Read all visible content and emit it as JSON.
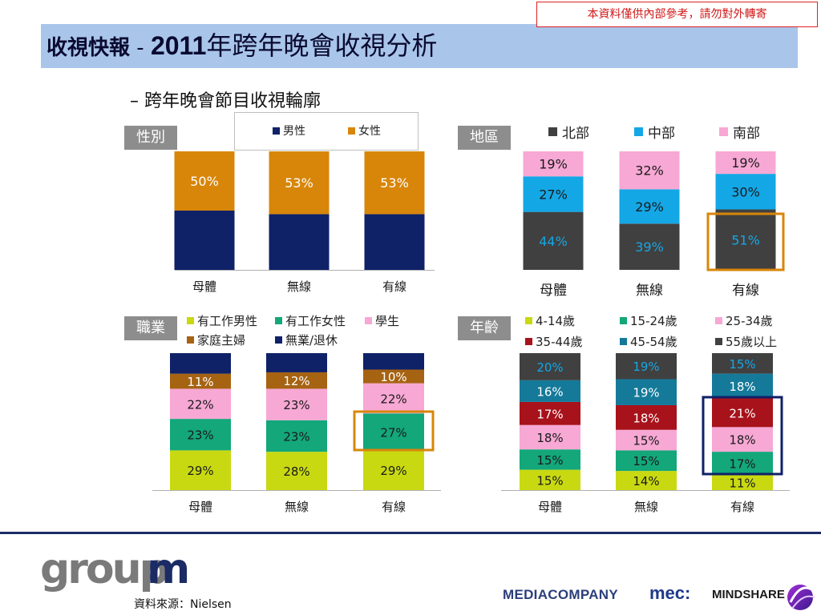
{
  "notice": "本資料僅供內部參考，請勿對外轉寄",
  "title": {
    "part1": "收視快報",
    "dash": " - ",
    "year": "2011",
    "part2": "年跨年晚會收視分析"
  },
  "subtitle": "– 跨年晚會節目收視輪廓",
  "tags": {
    "gender": "性別",
    "region": "地區",
    "occupation": "職業",
    "age": "年齡"
  },
  "source": "資料來源：Nielsen",
  "logos": {
    "groupm": "groupm",
    "mediacompany": "MEDIACOMPANY",
    "mec": "mec:",
    "mindshare": "MINDSHARE"
  },
  "chart_data": [
    {
      "id": "gender",
      "type": "bar",
      "stacked": true,
      "categories": [
        "母體",
        "無線",
        "有線"
      ],
      "series": [
        {
          "name": "男性",
          "color": "#0f2167",
          "values": [
            50,
            47,
            47
          ]
        },
        {
          "name": "女性",
          "color": "#d8860a",
          "values": [
            50,
            53,
            53
          ]
        }
      ],
      "labels": [
        [
          null,
          null,
          null
        ],
        [
          "50%",
          "53%",
          "53%"
        ]
      ]
    },
    {
      "id": "region",
      "type": "bar",
      "stacked": true,
      "categories": [
        "母體",
        "無線",
        "有線"
      ],
      "series": [
        {
          "name": "北部",
          "color": "#404040",
          "values": [
            44,
            39,
            51
          ]
        },
        {
          "name": "中部",
          "color": "#14a7e6",
          "values": [
            27,
            29,
            30
          ]
        },
        {
          "name": "南部",
          "color": "#f7a8d4",
          "values": [
            19,
            32,
            19
          ]
        }
      ],
      "labels": [
        [
          "44%",
          "39%",
          "51%"
        ],
        [
          "27%",
          "29%",
          "30%"
        ],
        [
          "19%",
          "32%",
          "19%"
        ]
      ],
      "highlight": "有線"
    },
    {
      "id": "occupation",
      "type": "bar",
      "stacked": true,
      "categories": [
        "母體",
        "無線",
        "有線"
      ],
      "series": [
        {
          "name": "有工作男性",
          "color": "#c8d912",
          "values": [
            29,
            28,
            29
          ]
        },
        {
          "name": "有工作女性",
          "color": "#13a77a",
          "values": [
            23,
            23,
            27
          ]
        },
        {
          "name": "學生",
          "color": "#f7a8d4",
          "values": [
            22,
            23,
            22
          ]
        },
        {
          "name": "家庭主婦",
          "color": "#a66312",
          "values": [
            11,
            12,
            10
          ]
        },
        {
          "name": "無業/退休",
          "color": "#0f2167",
          "values": [
            15,
            14,
            12
          ]
        }
      ],
      "labels": [
        [
          "29%",
          "28%",
          "29%"
        ],
        [
          "23%",
          "23%",
          "27%"
        ],
        [
          "22%",
          "23%",
          "22%"
        ],
        [
          "11%",
          "12%",
          "10%"
        ],
        [
          null,
          null,
          null
        ]
      ],
      "highlight": "有線"
    },
    {
      "id": "age",
      "type": "bar",
      "stacked": true,
      "categories": [
        "母體",
        "無線",
        "有線"
      ],
      "series": [
        {
          "name": "4-14歲",
          "color": "#c8d912",
          "values": [
            15,
            14,
            11
          ]
        },
        {
          "name": "15-24歲",
          "color": "#13a77a",
          "values": [
            15,
            15,
            17
          ]
        },
        {
          "name": "25-34歲",
          "color": "#f7a8d4",
          "values": [
            18,
            15,
            18
          ]
        },
        {
          "name": "35-44歲",
          "color": "#a8121b",
          "values": [
            17,
            18,
            21
          ]
        },
        {
          "name": "45-54歲",
          "color": "#157a9a",
          "values": [
            16,
            19,
            18
          ]
        },
        {
          "name": "55歲以上",
          "color": "#404040",
          "values": [
            20,
            19,
            15
          ]
        }
      ],
      "labels": [
        [
          "15%",
          "14%",
          "11%"
        ],
        [
          "15%",
          "15%",
          "17%"
        ],
        [
          "18%",
          "15%",
          "18%"
        ],
        [
          "17%",
          "18%",
          "21%"
        ],
        [
          "16%",
          "19%",
          "18%"
        ],
        [
          "20%",
          "19%",
          "15%"
        ]
      ],
      "highlight": "有線"
    }
  ]
}
